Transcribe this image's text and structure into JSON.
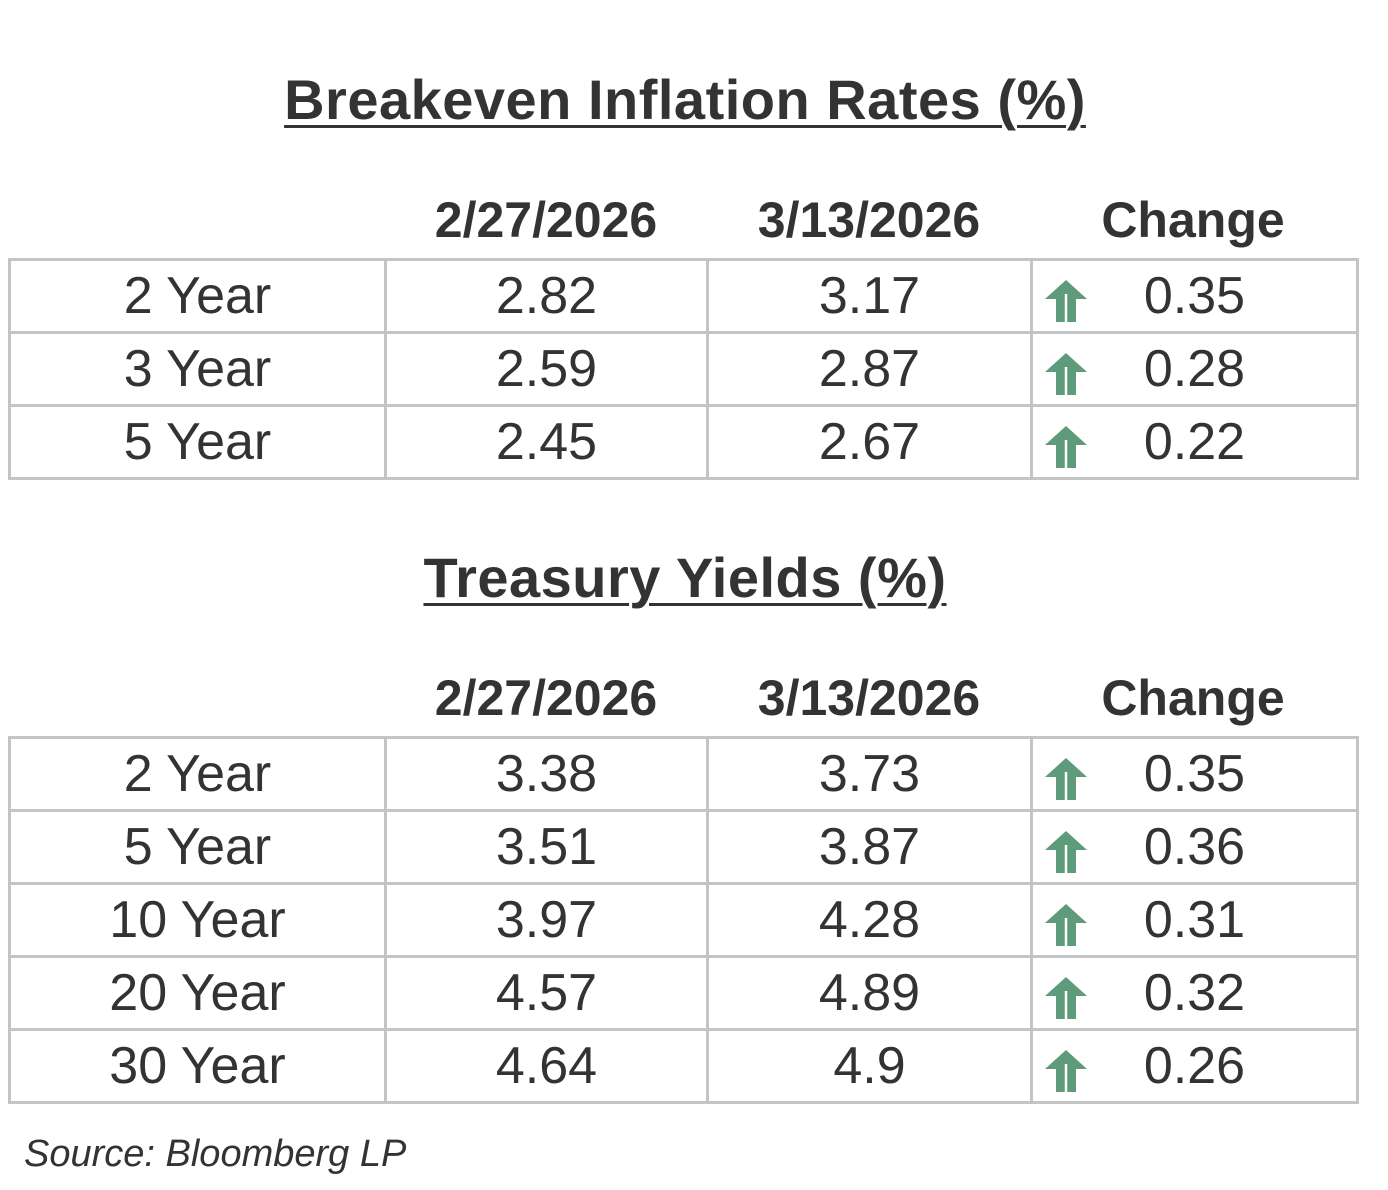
{
  "breakeven": {
    "title": "Breakeven Inflation Rates (%)",
    "headers": [
      "2/27/2026",
      "3/13/2026",
      "Change"
    ],
    "rows": [
      {
        "label": "2 Year",
        "v1": "2.82",
        "v2": "3.17",
        "change": "0.35",
        "direction": "up"
      },
      {
        "label": "3 Year",
        "v1": "2.59",
        "v2": "2.87",
        "change": "0.28",
        "direction": "up"
      },
      {
        "label": "5 Year",
        "v1": "2.45",
        "v2": "2.67",
        "change": "0.22",
        "direction": "up"
      }
    ]
  },
  "treasury": {
    "title": "Treasury Yields (%)",
    "headers": [
      "2/27/2026",
      "3/13/2026",
      "Change"
    ],
    "rows": [
      {
        "label": "2 Year",
        "v1": "3.38",
        "v2": "3.73",
        "change": "0.35",
        "direction": "up"
      },
      {
        "label": "5 Year",
        "v1": "3.51",
        "v2": "3.87",
        "change": "0.36",
        "direction": "up"
      },
      {
        "label": "10 Year",
        "v1": "3.97",
        "v2": "4.28",
        "change": "0.31",
        "direction": "up"
      },
      {
        "label": "20 Year",
        "v1": "4.57",
        "v2": "4.89",
        "change": "0.32",
        "direction": "up"
      },
      {
        "label": "30 Year",
        "v1": "4.64",
        "v2": "4.9",
        "change": "0.26",
        "direction": "up"
      }
    ]
  },
  "source": "Source: Bloomberg LP",
  "colors": {
    "arrow_up": "#5e9b7a",
    "text": "#333333",
    "grid": "#c4c4c4"
  },
  "icons": {
    "change_up": "arrow-up-icon"
  }
}
